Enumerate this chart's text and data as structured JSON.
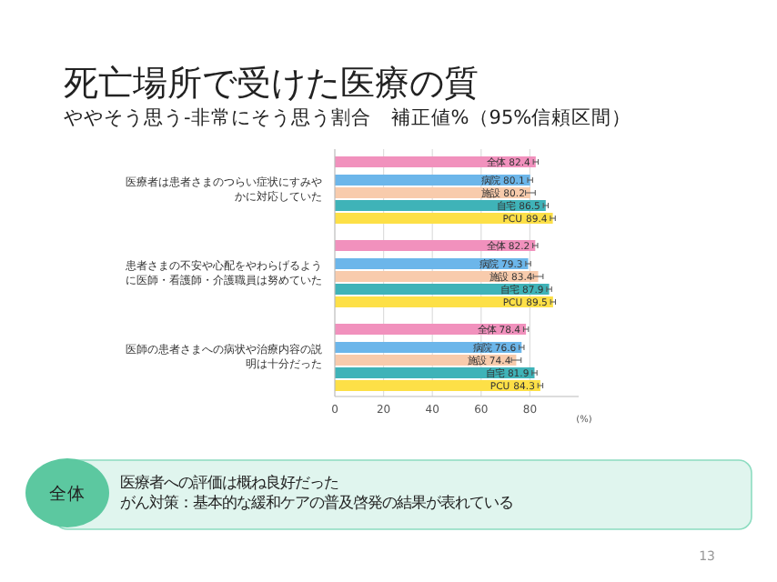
{
  "chart_data": {
    "type": "bar",
    "orientation": "horizontal",
    "title": "死亡場所で受けた医療の質",
    "subtitle": "ややそう思う-非常にそう思う割合　補正値%（95%信頼区間）",
    "xlabel": "(%)",
    "categories": [
      "医療者は患者さまのつらい症状にすみやかに対応していた",
      "患者さまの不安や心配をやわらげるように医師・看護師・介護職員は努めていた",
      "医師の患者さまへの病状や治療内容の説明は十分だった"
    ],
    "series": [
      {
        "name": "全体",
        "color": "#f191bd",
        "values": [
          82.4,
          82.2,
          78.4
        ],
        "errors": [
          1,
          1,
          1
        ]
      },
      {
        "name": "病院",
        "color": "#6cb6ea",
        "values": [
          80.1,
          79.3,
          76.6
        ],
        "errors": [
          1,
          1,
          1
        ]
      },
      {
        "name": "施設",
        "color": "#f8cbac",
        "values": [
          80.2,
          83.4,
          74.4
        ],
        "errors": [
          2,
          2,
          2
        ]
      },
      {
        "name": "自宅",
        "color": "#3fb3b8",
        "values": [
          86.5,
          87.9,
          81.9
        ],
        "errors": [
          1,
          1,
          1
        ]
      },
      {
        "name": "PCU",
        "color": "#fde047",
        "values": [
          89.4,
          89.5,
          84.3
        ],
        "errors": [
          1,
          1,
          1
        ]
      }
    ],
    "xlim": [
      0,
      100
    ],
    "xticks": [
      0,
      20,
      40,
      60,
      80
    ],
    "grid": "x",
    "data_labels": true,
    "annotations": [
      "全体",
      "医療者への評価は概ね良好だった",
      "がん対策：基本的な緩和ケアの普及啓発の結果が表れている",
      "13"
    ]
  }
}
